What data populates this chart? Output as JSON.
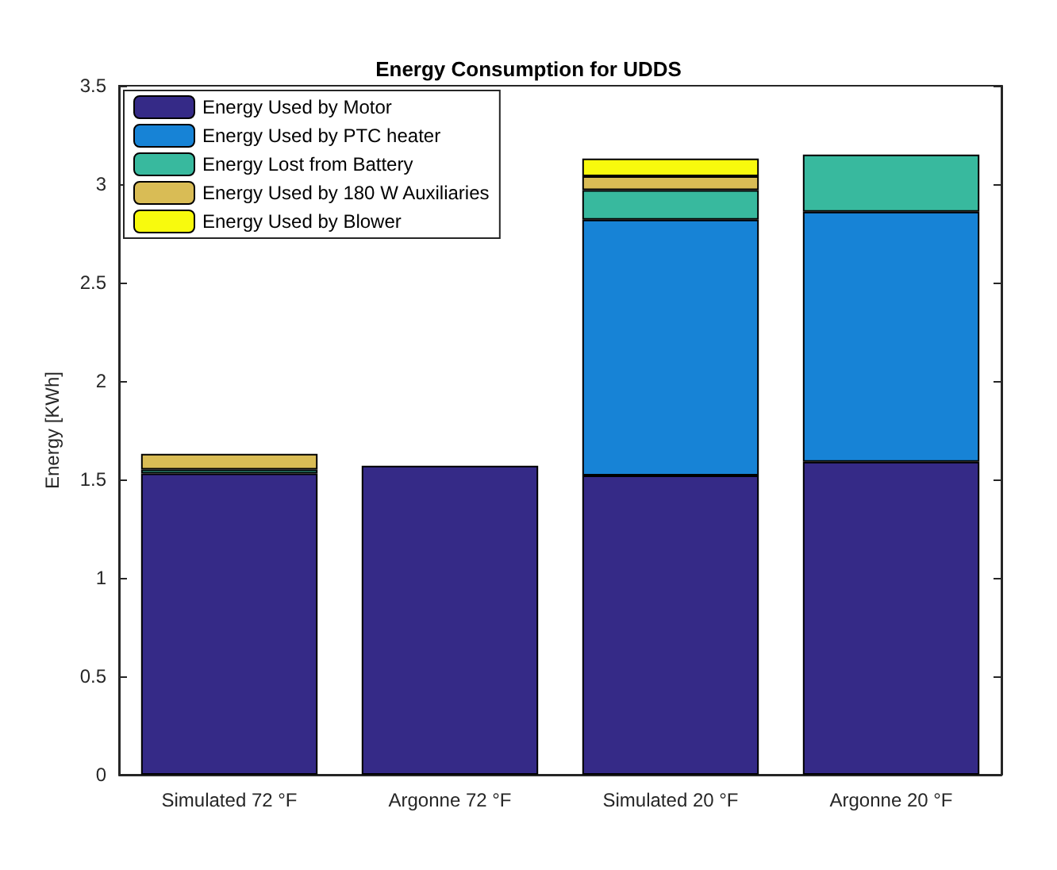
{
  "chart_data": {
    "type": "bar",
    "stacked": true,
    "title": "Energy Consumption for UDDS",
    "ylabel": "Energy [KWh]",
    "categories": [
      "Simulated 72 °F",
      "Argonne 72 °F",
      "Simulated 20 °F",
      "Argonne 20 °F"
    ],
    "series": [
      {
        "name": "Energy Used by Motor",
        "color": "#352a87",
        "values": [
          1.53,
          1.57,
          1.52,
          1.59
        ]
      },
      {
        "name": "Energy Used by PTC heater",
        "color": "#1783d6",
        "values": [
          null,
          null,
          1.3,
          1.27
        ]
      },
      {
        "name": "Energy Lost from Battery",
        "color": "#38b99e",
        "values": [
          0.02,
          null,
          0.15,
          0.29
        ]
      },
      {
        "name": "Energy Used by 180 W Auxiliaries",
        "color": "#d9bc55",
        "values": [
          0.08,
          null,
          0.07,
          null
        ]
      },
      {
        "name": "Energy Used by Blower",
        "color": "#f8fa0d",
        "values": [
          null,
          null,
          0.09,
          null
        ]
      }
    ],
    "ylim": [
      0,
      3.5
    ],
    "yticks": [
      0,
      0.5,
      1,
      1.5,
      2,
      2.5,
      3,
      3.5
    ],
    "grid": false,
    "legend": "top left"
  }
}
